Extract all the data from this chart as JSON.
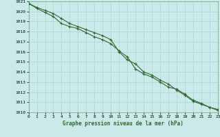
{
  "title": "Graphe pression niveau de la mer (hPa)",
  "bg_color": "#caeaea",
  "grid_color": "#aad4d4",
  "line_color": "#2d6a2d",
  "xlim": [
    0,
    23
  ],
  "ylim": [
    1010,
    1021
  ],
  "xticks": [
    0,
    1,
    2,
    3,
    4,
    5,
    6,
    7,
    8,
    9,
    10,
    11,
    12,
    13,
    14,
    15,
    16,
    17,
    18,
    19,
    20,
    21,
    22,
    23
  ],
  "yticks": [
    1010,
    1011,
    1012,
    1013,
    1014,
    1015,
    1016,
    1017,
    1018,
    1019,
    1020,
    1021
  ],
  "series1_x": [
    0,
    1,
    2,
    3,
    4,
    5,
    6,
    7,
    8,
    9,
    10,
    11,
    12,
    13,
    14,
    15,
    16,
    17,
    18,
    19,
    20,
    21,
    22,
    23
  ],
  "series1_y": [
    1020.8,
    1020.4,
    1020.1,
    1019.8,
    1019.3,
    1018.8,
    1018.5,
    1018.2,
    1017.9,
    1017.6,
    1017.2,
    1016.0,
    1015.2,
    1014.8,
    1014.0,
    1013.7,
    1013.2,
    1012.8,
    1012.2,
    1011.7,
    1011.1,
    1010.8,
    1010.5,
    1010.2
  ],
  "series2_x": [
    0,
    1,
    2,
    3,
    4,
    5,
    6,
    7,
    8,
    9,
    10,
    11,
    12,
    13,
    14,
    15,
    16,
    17,
    18,
    19,
    20,
    21,
    22,
    23
  ],
  "series2_y": [
    1020.8,
    1020.3,
    1019.9,
    1019.5,
    1018.8,
    1018.5,
    1018.3,
    1017.9,
    1017.5,
    1017.2,
    1016.8,
    1016.1,
    1015.5,
    1014.3,
    1013.8,
    1013.5,
    1013.0,
    1012.5,
    1012.3,
    1011.8,
    1011.2,
    1010.9,
    1010.5,
    1010.3
  ]
}
